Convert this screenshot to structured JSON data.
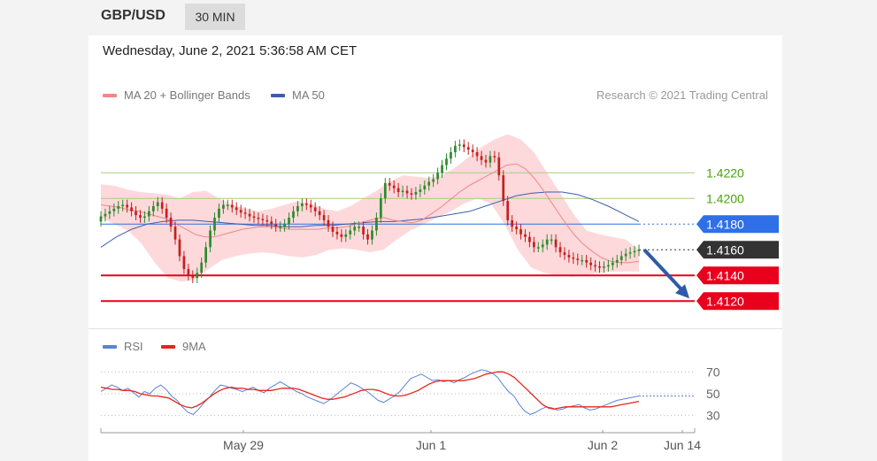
{
  "header": {
    "pair": "GBP/USD",
    "timeframe": "30 MIN"
  },
  "date_line": "Wednesday, June 2, 2021 5:36:58 AM CET",
  "credit": "Research © 2021 Trading Central",
  "colors": {
    "ma20": "#f2858a",
    "bands": "#fdd9db",
    "ma50": "#3b5ea8",
    "resistance": "#a8cd7e",
    "pivot": "#2f6fe8",
    "support": "#e8001c",
    "current": "#333333",
    "candle_up": "#2e8b2e",
    "candle_down": "#c81e1e",
    "rsi": "#5b84d6",
    "rsi_ma": "#e8241c",
    "arrow": "#2e5aa8",
    "resistance_text": "#49a30a"
  },
  "chart_data": [
    {
      "type": "candlestick",
      "legend": [
        {
          "label": "MA 20 + Bollinger Bands",
          "color": "#f2858a"
        },
        {
          "label": "MA 50",
          "color": "#3b5ea8"
        }
      ],
      "x_labels": [
        "May 29",
        "Jun 1",
        "Jun 2",
        "Jun 14"
      ],
      "ylim": [
        1.4105,
        1.4265
      ],
      "levels": [
        {
          "label": "1.4220",
          "value": 1.422,
          "kind": "resistance"
        },
        {
          "label": "1.4200",
          "value": 1.42,
          "kind": "resistance"
        },
        {
          "label": "1.4180",
          "value": 1.418,
          "kind": "pivot"
        },
        {
          "label": "1.4160",
          "value": 1.416,
          "kind": "current"
        },
        {
          "label": "1.4140",
          "value": 1.414,
          "kind": "support"
        },
        {
          "label": "1.4120",
          "value": 1.412,
          "kind": "support"
        }
      ],
      "close": [
        1.4186,
        1.4188,
        1.419,
        1.4192,
        1.4194,
        1.4195,
        1.4193,
        1.419,
        1.4187,
        1.4185,
        1.4186,
        1.419,
        1.4194,
        1.4197,
        1.4192,
        1.4185,
        1.4178,
        1.4168,
        1.4155,
        1.4145,
        1.414,
        1.4138,
        1.4142,
        1.415,
        1.4162,
        1.4175,
        1.4185,
        1.4192,
        1.4195,
        1.4195,
        1.4193,
        1.4191,
        1.4189,
        1.4188,
        1.4186,
        1.4185,
        1.4184,
        1.4183,
        1.4182,
        1.418,
        1.4178,
        1.4178,
        1.418,
        1.4185,
        1.419,
        1.4194,
        1.4196,
        1.4195,
        1.4193,
        1.419,
        1.4187,
        1.4183,
        1.4178,
        1.4174,
        1.4172,
        1.417,
        1.4172,
        1.4175,
        1.4178,
        1.4178,
        1.4172,
        1.4168,
        1.4175,
        1.4185,
        1.42,
        1.4212,
        1.421,
        1.4208,
        1.4205,
        1.4206,
        1.4204,
        1.4203,
        1.4205,
        1.4207,
        1.421,
        1.4213,
        1.4215,
        1.422,
        1.4226,
        1.4231,
        1.4236,
        1.4241,
        1.4242,
        1.424,
        1.4238,
        1.4236,
        1.4233,
        1.423,
        1.4228,
        1.4233,
        1.4232,
        1.4218,
        1.4198,
        1.4183,
        1.4178,
        1.4176,
        1.4172,
        1.417,
        1.4166,
        1.4162,
        1.4162,
        1.4164,
        1.4168,
        1.4168,
        1.4162,
        1.4158,
        1.4156,
        1.4154,
        1.4153,
        1.4152,
        1.4152,
        1.415,
        1.4148,
        1.4147,
        1.4146,
        1.4147,
        1.4148,
        1.415,
        1.4152,
        1.4155,
        1.4157,
        1.4158,
        1.4159,
        1.416
      ],
      "ma20": [
        1.4195,
        1.4194,
        1.4193,
        1.4191,
        1.419,
        1.4188,
        1.4186,
        1.4184,
        1.418,
        1.4176,
        1.4172,
        1.417,
        1.417,
        1.4172,
        1.4174,
        1.4176,
        1.4177,
        1.4178,
        1.4178,
        1.4177,
        1.4176,
        1.4176,
        1.4176,
        1.4176,
        1.4177,
        1.4177,
        1.4178,
        1.418,
        1.4182,
        1.4184,
        1.4185,
        1.4183,
        1.4182,
        1.4181,
        1.4183,
        1.4188,
        1.4193,
        1.4199,
        1.4205,
        1.421,
        1.4214,
        1.4218,
        1.4222,
        1.4226,
        1.4227,
        1.4223,
        1.4215,
        1.4205,
        1.4194,
        1.4183,
        1.4173,
        1.4165,
        1.4159,
        1.4154,
        1.4151,
        1.415,
        1.415,
        1.4151
      ],
      "ma50": [
        1.4162,
        1.417,
        1.4176,
        1.418,
        1.4182,
        1.4183,
        1.4183,
        1.4182,
        1.4181,
        1.418,
        1.4179,
        1.4179,
        1.4178,
        1.4178,
        1.4179,
        1.4179,
        1.418,
        1.4181,
        1.4182,
        1.4182,
        1.4183,
        1.4184,
        1.4186,
        1.4188,
        1.419,
        1.4194,
        1.4198,
        1.4202,
        1.4204,
        1.4205,
        1.4205,
        1.4203,
        1.4199,
        1.4194,
        1.4188,
        1.4182
      ],
      "bands_upper": [
        1.4211,
        1.421,
        1.4207,
        1.4205,
        1.4204,
        1.4203,
        1.42,
        1.4205,
        1.4206,
        1.42,
        1.4195,
        1.4192,
        1.419,
        1.4192,
        1.4195,
        1.4198,
        1.4196,
        1.4192,
        1.419,
        1.4194,
        1.42,
        1.4206,
        1.4213,
        1.4218,
        1.4217,
        1.4216,
        1.4218,
        1.4224,
        1.4232,
        1.424,
        1.4246,
        1.425,
        1.4246,
        1.4236,
        1.422,
        1.4204,
        1.4188,
        1.4175,
        1.4172,
        1.417,
        1.4168,
        1.416
      ],
      "bands_lower": [
        1.4185,
        1.418,
        1.4175,
        1.4165,
        1.415,
        1.4138,
        1.4135,
        1.4137,
        1.4145,
        1.4152,
        1.4155,
        1.4157,
        1.4158,
        1.4157,
        1.4155,
        1.4154,
        1.4156,
        1.416,
        1.4161,
        1.416,
        1.4158,
        1.416,
        1.4168,
        1.4175,
        1.418,
        1.4185,
        1.419,
        1.4196,
        1.42,
        1.4196,
        1.418,
        1.416,
        1.4146,
        1.4142,
        1.414,
        1.4139,
        1.414,
        1.4142,
        1.4143,
        1.4143,
        1.4143
      ]
    },
    {
      "type": "line",
      "legend": [
        {
          "label": "RSI",
          "color": "#5b84d6"
        },
        {
          "label": "9MA",
          "color": "#e8241c"
        }
      ],
      "ticks": [
        70,
        50,
        30
      ],
      "ylim": [
        20,
        80
      ],
      "rsi": [
        52,
        55,
        58,
        56,
        53,
        55,
        51,
        47,
        52,
        50,
        55,
        58,
        54,
        48,
        44,
        38,
        33,
        31,
        36,
        42,
        47,
        53,
        58,
        57,
        55,
        54,
        52,
        54,
        56,
        53,
        51,
        55,
        58,
        61,
        58,
        55,
        52,
        50,
        47,
        45,
        43,
        41,
        44,
        48,
        52,
        56,
        60,
        58,
        55,
        52,
        48,
        44,
        42,
        45,
        48,
        52,
        58,
        64,
        66,
        68,
        65,
        62,
        63,
        61,
        62,
        60,
        63,
        65,
        68,
        70,
        72,
        71,
        69,
        65,
        58,
        52,
        48,
        40,
        34,
        31,
        33,
        36,
        38,
        37,
        35,
        36,
        38,
        39,
        40,
        37,
        35,
        36,
        38,
        40,
        42,
        44,
        45,
        46,
        47,
        48
      ],
      "rsi_ma": [
        56,
        55,
        54,
        54,
        53,
        53,
        52,
        50,
        49,
        48,
        48,
        47,
        46,
        43,
        40,
        38,
        37,
        39,
        42,
        46,
        50,
        53,
        55,
        56,
        55,
        55,
        54,
        54,
        53,
        53,
        53,
        54,
        55,
        55,
        55,
        54,
        52,
        50,
        48,
        46,
        45,
        45,
        46,
        47,
        49,
        51,
        53,
        54,
        54,
        53,
        51,
        49,
        48,
        48,
        49,
        51,
        53,
        56,
        59,
        61,
        62,
        62,
        62,
        62,
        62,
        63,
        64,
        66,
        68,
        69,
        70,
        70,
        68,
        65,
        60,
        55,
        50,
        45,
        40,
        37,
        36,
        37,
        38,
        38,
        38,
        38,
        38,
        38,
        38,
        38,
        38,
        39,
        40,
        41,
        42,
        43
      ],
      "rsi_projection": [
        48,
        48,
        48,
        48
      ]
    }
  ]
}
